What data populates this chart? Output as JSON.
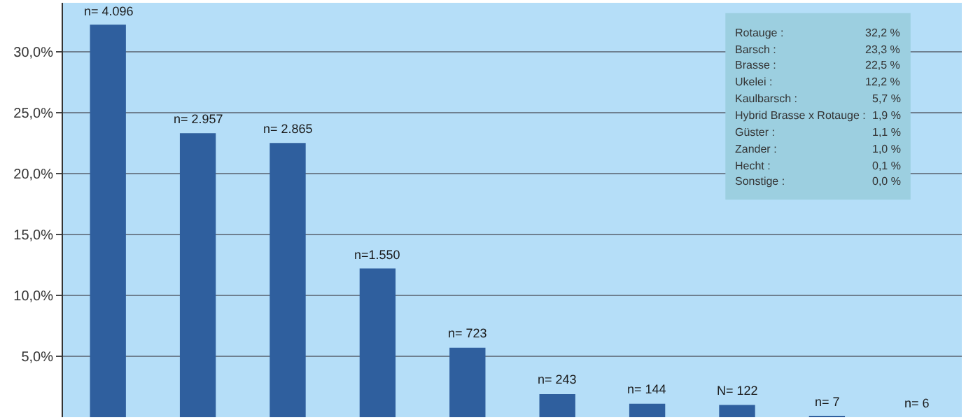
{
  "chart_data": {
    "type": "bar",
    "categories": [
      null,
      null,
      null,
      null,
      null,
      null,
      null,
      null,
      null,
      null
    ],
    "values": [
      32.2,
      23.3,
      22.5,
      12.2,
      5.7,
      1.9,
      1.1,
      1.0,
      0.1,
      0.0
    ],
    "color": "#2f5f9e",
    "ylim": [
      0,
      34
    ],
    "yticks": [
      {
        "value": 5,
        "label": "5,0%"
      },
      {
        "value": 10,
        "label": "10,0%"
      },
      {
        "value": 15,
        "label": "15,0%"
      },
      {
        "value": 20,
        "label": "20,0%"
      },
      {
        "value": 25,
        "label": "25,0%"
      },
      {
        "value": 30,
        "label": "30,0%"
      }
    ],
    "grid": "y",
    "legend": false,
    "annotations": [
      {
        "text": "n= 4.096",
        "y": 32.2
      },
      {
        "text": "n= 2.957",
        "y": 23.3
      },
      {
        "text": "n= 2.865",
        "y": 22.5
      },
      {
        "text": "n=1.550",
        "y": 12.2
      },
      {
        "text": "n= 723",
        "y": 5.7
      },
      {
        "text": "n= 243",
        "y": 1.9
      },
      {
        "text": "n= 144",
        "y": 1.1
      },
      {
        "text": "N= 122",
        "y": 1.0
      },
      {
        "text": "n= 7",
        "y": 0.1
      },
      {
        "text": "n= 6",
        "y": 0.0
      },
      "Rotauge :",
      "32,2 %",
      "Barsch :",
      "23,3 %",
      "Brasse :",
      "22,5 %",
      "Ukelei :",
      "12,2 %",
      "Kaulbarsch :",
      "5,7 %",
      "Hybrid Brasse x Rotauge :",
      "1,9 %",
      "Güster :",
      "1,1 %",
      "Zander :",
      "1,0 %",
      "Hecht :",
      "0,1 %",
      "Sonstige :",
      "0,0 %"
    ]
  }
}
